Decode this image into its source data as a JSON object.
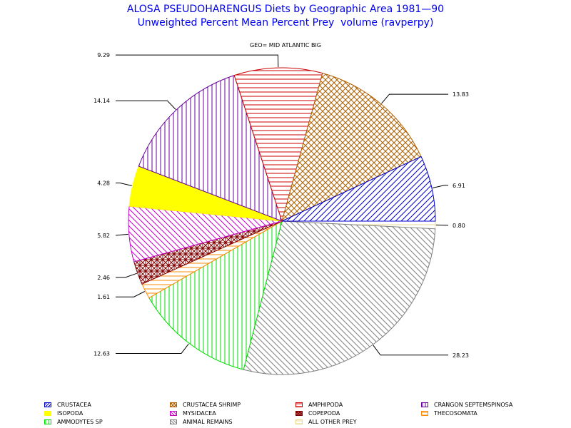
{
  "title_line1": "ALOSA PSEUDOHARENGUS Diets by Geographic Area 1981—90",
  "title_line2": "Unweighted Percent Mean Percent Prey  volume (ravperpy)",
  "subtitle": "GEO= MID ATLANTIC BIG",
  "chart_data": {
    "type": "pie",
    "start_angle_deg": 90,
    "direction": "clockwise",
    "slices": [
      {
        "name": "ALL OTHER PREY",
        "value": 0.8,
        "label": "0.80",
        "color": "#e8d890",
        "pattern": "hlines"
      },
      {
        "name": "ANIMAL REMAINS",
        "value": 28.23,
        "label": "28.23",
        "color": "#808080",
        "pattern": "diag-down"
      },
      {
        "name": "AMMODYTES SP",
        "value": 12.63,
        "label": "12.63",
        "color": "#00dd00",
        "pattern": "vlines"
      },
      {
        "name": "THECOSOMATA",
        "value": 1.61,
        "label": "1.61",
        "color": "#ff8800",
        "pattern": "hlines"
      },
      {
        "name": "COPEPODA",
        "value": 2.46,
        "label": "2.46",
        "color": "#800000",
        "pattern": "cross"
      },
      {
        "name": "MYSIDACEA",
        "value": 5.82,
        "label": "5.82",
        "color": "#cc00cc",
        "pattern": "diag-down"
      },
      {
        "name": "ISOPODA",
        "value": 4.28,
        "label": "4.28",
        "color": "#ffff00",
        "pattern": "solid"
      },
      {
        "name": "CRANGON SEPTEMSPINOSA",
        "value": 14.14,
        "label": "14.14",
        "color": "#660099",
        "pattern": "vlines"
      },
      {
        "name": "AMPHIPODA",
        "value": 9.29,
        "label": "9.29",
        "color": "#cc0000",
        "pattern": "hlines"
      },
      {
        "name": "CRUSTACEA SHRIMP",
        "value": 13.83,
        "label": "13.83",
        "color": "#b06000",
        "pattern": "cross-diag"
      },
      {
        "name": "CRUSTACEA",
        "value": 6.91,
        "label": "6.91",
        "color": "#0000cc",
        "pattern": "diag-up"
      }
    ],
    "legend": [
      {
        "name": "CRUSTACEA",
        "color": "#0000cc",
        "pattern": "diag-up"
      },
      {
        "name": "CRUSTACEA SHRIMP",
        "color": "#b06000",
        "pattern": "cross-diag"
      },
      {
        "name": "AMPHIPODA",
        "color": "#cc0000",
        "pattern": "hlines"
      },
      {
        "name": "CRANGON SEPTEMSPINOSA",
        "color": "#660099",
        "pattern": "vlines"
      },
      {
        "name": "ISOPODA",
        "color": "#ffff00",
        "pattern": "solid"
      },
      {
        "name": "MYSIDACEA",
        "color": "#cc00cc",
        "pattern": "diag-down"
      },
      {
        "name": "COPEPODA",
        "color": "#800000",
        "pattern": "cross"
      },
      {
        "name": "THECOSOMATA",
        "color": "#ff8800",
        "pattern": "hlines"
      },
      {
        "name": "AMMODYTES SP",
        "color": "#00dd00",
        "pattern": "vlines"
      },
      {
        "name": "ANIMAL REMAINS",
        "color": "#808080",
        "pattern": "diag-down"
      },
      {
        "name": "ALL OTHER PREY",
        "color": "#e8d890",
        "pattern": "hlines"
      }
    ],
    "legend_position": "bottom"
  }
}
